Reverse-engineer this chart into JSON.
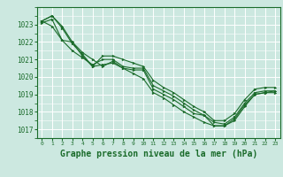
{
  "background_color": "#cce8e0",
  "grid_color": "#ffffff",
  "line_color": "#1a6b2a",
  "xlabel": "Graphe pression niveau de la mer (hPa)",
  "xlabel_fontsize": 7,
  "ylim": [
    1016.5,
    1024.0
  ],
  "xlim": [
    -0.5,
    23.5
  ],
  "yticks": [
    1017,
    1018,
    1019,
    1020,
    1021,
    1022,
    1023
  ],
  "xticks": [
    0,
    1,
    2,
    3,
    4,
    5,
    6,
    7,
    8,
    9,
    10,
    11,
    12,
    13,
    14,
    15,
    16,
    17,
    18,
    19,
    20,
    21,
    22,
    23
  ],
  "series": [
    [
      1023.2,
      1023.5,
      1022.9,
      1022.0,
      1021.4,
      1021.0,
      1020.6,
      1020.9,
      1020.5,
      1020.4,
      1020.4,
      1019.3,
      1019.0,
      1018.7,
      1018.3,
      1017.9,
      1017.8,
      1017.2,
      1017.2,
      1017.6,
      1018.4,
      1019.0,
      1019.1,
      1019.2
    ],
    [
      1023.2,
      1022.9,
      1022.1,
      1021.5,
      1021.1,
      1020.7,
      1021.0,
      1021.0,
      1020.6,
      1020.5,
      1020.5,
      1019.5,
      1019.2,
      1018.9,
      1018.5,
      1018.1,
      1017.8,
      1017.4,
      1017.3,
      1017.7,
      1018.5,
      1019.1,
      1019.2,
      1019.2
    ],
    [
      1023.1,
      1023.3,
      1022.1,
      1022.0,
      1021.2,
      1020.6,
      1021.2,
      1021.2,
      1021.0,
      1020.8,
      1020.6,
      1019.8,
      1019.4,
      1019.1,
      1018.7,
      1018.3,
      1018.0,
      1017.5,
      1017.5,
      1017.9,
      1018.7,
      1019.3,
      1019.4,
      1019.4
    ],
    [
      1023.2,
      1023.5,
      1022.8,
      1021.9,
      1021.3,
      1020.6,
      1020.7,
      1020.8,
      1020.5,
      1020.2,
      1019.9,
      1019.1,
      1018.8,
      1018.4,
      1018.0,
      1017.7,
      1017.4,
      1017.2,
      1017.2,
      1017.5,
      1018.3,
      1019.0,
      1019.1,
      1019.1
    ]
  ]
}
